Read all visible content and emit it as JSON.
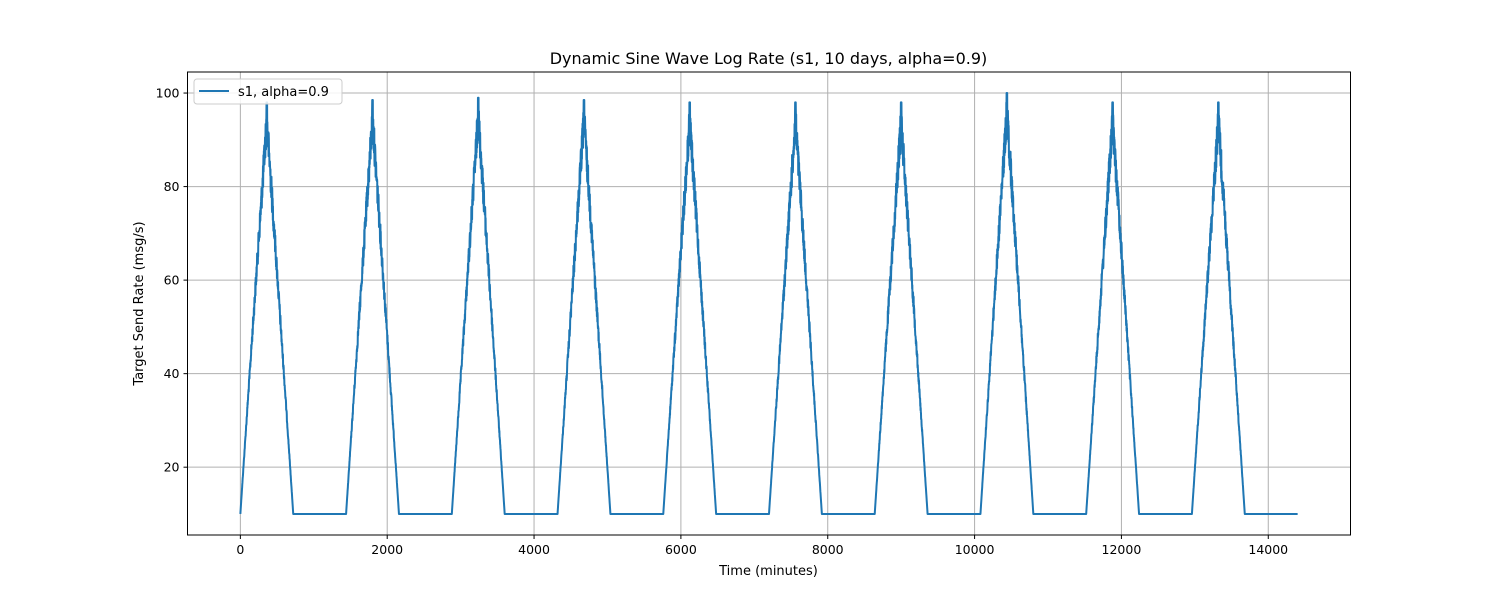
{
  "chart_data": {
    "type": "line",
    "title": "Dynamic Sine Wave Log Rate (s1, 10 days, alpha=0.9)",
    "xlabel": "Time (minutes)",
    "ylabel": "Target Send Rate (msg/s)",
    "xlim": [
      -720,
      15120
    ],
    "ylim": [
      5.5,
      104.5
    ],
    "xticks": [
      0,
      2000,
      4000,
      6000,
      8000,
      10000,
      12000,
      14000
    ],
    "yticks": [
      20,
      40,
      60,
      80,
      100
    ],
    "grid": true,
    "legend_position": "top-left",
    "series": [
      {
        "name": "s1, alpha=0.9",
        "color": "#1f77b4",
        "x_start": 0,
        "x_end": 14400,
        "period": 1440,
        "baseline": 10,
        "active_start": 0,
        "active_end": 720,
        "peak_at": 360,
        "peak_max": 98,
        "noise_amplitude": 8,
        "observed_peaks": [
          98,
          98.5,
          99,
          98.5,
          98,
          98,
          98,
          100,
          98,
          98
        ]
      }
    ]
  }
}
